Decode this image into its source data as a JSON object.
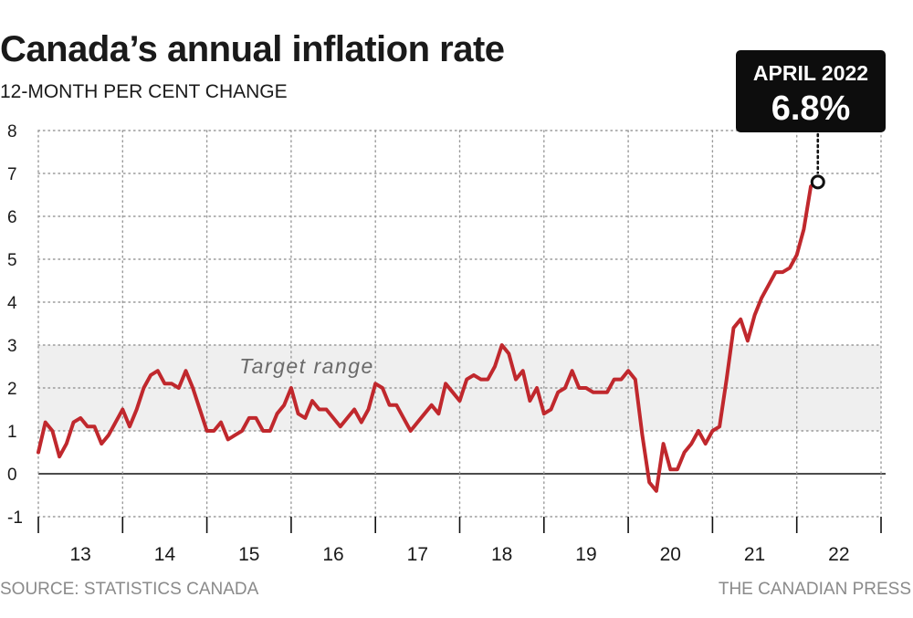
{
  "header": {
    "title": "Canada’s annual inflation rate",
    "subtitle": "12-MONTH PER CENT CHANGE"
  },
  "footer": {
    "source": "SOURCE: STATISTICS CANADA",
    "credit": "THE CANADIAN PRESS"
  },
  "colors": {
    "line": "#c0282d",
    "band": "#efefef",
    "grid": "#9a9a9a",
    "callout_bg": "#0d0d0d",
    "callout_text": "#ffffff"
  },
  "chart_data": {
    "type": "line",
    "title": "Canada’s annual inflation rate",
    "subtitle": "12-MONTH PER CENT CHANGE",
    "ylim": [
      -1,
      8
    ],
    "yticks": [
      -1,
      0,
      1,
      2,
      3,
      4,
      5,
      6,
      7,
      8
    ],
    "ytick_labels": [
      "-1",
      "0",
      "1",
      "2",
      "3",
      "4",
      "5",
      "6",
      "7",
      "8"
    ],
    "x_start": "2013-01",
    "x_end": "2022-12",
    "xtick_labels": [
      "13",
      "14",
      "15",
      "16",
      "17",
      "18",
      "19",
      "20",
      "21",
      "22"
    ],
    "grid": true,
    "target_range": {
      "label": "Target range",
      "low": 1,
      "high": 3
    },
    "callout": {
      "label": "APRIL 2022",
      "value": "6.8%",
      "x": "2022-04",
      "y": 6.8
    },
    "series": [
      {
        "x": [
          "2013-01",
          "2013-02",
          "2013-03",
          "2013-04",
          "2013-05",
          "2013-06",
          "2013-07",
          "2013-08",
          "2013-09",
          "2013-10",
          "2013-11",
          "2013-12",
          "2014-01",
          "2014-02",
          "2014-03",
          "2014-04",
          "2014-05",
          "2014-06",
          "2014-07",
          "2014-08",
          "2014-09",
          "2014-10",
          "2014-11",
          "2014-12",
          "2015-01",
          "2015-02",
          "2015-03",
          "2015-04",
          "2015-05",
          "2015-06",
          "2015-07",
          "2015-08",
          "2015-09",
          "2015-10",
          "2015-11",
          "2015-12",
          "2016-01",
          "2016-02",
          "2016-03",
          "2016-04",
          "2016-05",
          "2016-06",
          "2016-07",
          "2016-08",
          "2016-09",
          "2016-10",
          "2016-11",
          "2016-12",
          "2017-01",
          "2017-02",
          "2017-03",
          "2017-04",
          "2017-05",
          "2017-06",
          "2017-07",
          "2017-08",
          "2017-09",
          "2017-10",
          "2017-11",
          "2017-12",
          "2018-01",
          "2018-02",
          "2018-03",
          "2018-04",
          "2018-05",
          "2018-06",
          "2018-07",
          "2018-08",
          "2018-09",
          "2018-10",
          "2018-11",
          "2018-12",
          "2019-01",
          "2019-02",
          "2019-03",
          "2019-04",
          "2019-05",
          "2019-06",
          "2019-07",
          "2019-08",
          "2019-09",
          "2019-10",
          "2019-11",
          "2019-12",
          "2020-01",
          "2020-02",
          "2020-03",
          "2020-04",
          "2020-05",
          "2020-06",
          "2020-07",
          "2020-08",
          "2020-09",
          "2020-10",
          "2020-11",
          "2020-12",
          "2021-01",
          "2021-02",
          "2021-03",
          "2021-04",
          "2021-05",
          "2021-06",
          "2021-07",
          "2021-08",
          "2021-09",
          "2021-10",
          "2021-11",
          "2021-12",
          "2022-01",
          "2022-02",
          "2022-03",
          "2022-04"
        ],
        "y": [
          0.5,
          1.2,
          1.0,
          0.4,
          0.7,
          1.2,
          1.3,
          1.1,
          1.1,
          0.7,
          0.9,
          1.2,
          1.5,
          1.1,
          1.5,
          2.0,
          2.3,
          2.4,
          2.1,
          2.1,
          2.0,
          2.4,
          2.0,
          1.5,
          1.0,
          1.0,
          1.2,
          0.8,
          0.9,
          1.0,
          1.3,
          1.3,
          1.0,
          1.0,
          1.4,
          1.6,
          2.0,
          1.4,
          1.3,
          1.7,
          1.5,
          1.5,
          1.3,
          1.1,
          1.3,
          1.5,
          1.2,
          1.5,
          2.1,
          2.0,
          1.6,
          1.6,
          1.3,
          1.0,
          1.2,
          1.4,
          1.6,
          1.4,
          2.1,
          1.9,
          1.7,
          2.2,
          2.3,
          2.2,
          2.2,
          2.5,
          3.0,
          2.8,
          2.2,
          2.4,
          1.7,
          2.0,
          1.4,
          1.5,
          1.9,
          2.0,
          2.4,
          2.0,
          2.0,
          1.9,
          1.9,
          1.9,
          2.2,
          2.2,
          2.4,
          2.2,
          0.9,
          -0.2,
          -0.4,
          0.7,
          0.1,
          0.1,
          0.5,
          0.7,
          1.0,
          0.7,
          1.0,
          1.1,
          2.2,
          3.4,
          3.6,
          3.1,
          3.7,
          4.1,
          4.4,
          4.7,
          4.7,
          4.8,
          5.1,
          5.7,
          6.7,
          6.8
        ]
      }
    ]
  }
}
